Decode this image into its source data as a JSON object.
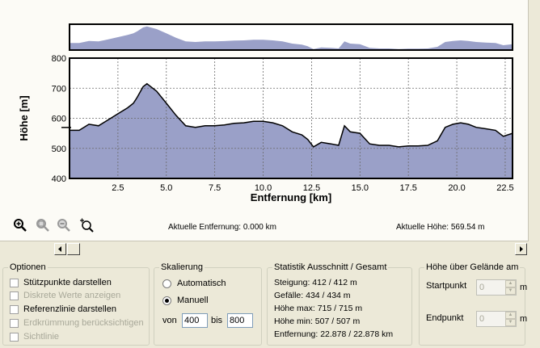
{
  "chart_data": {
    "type": "area",
    "title": "",
    "xlabel": "Entfernung [km]",
    "ylabel": "Höhe [m]",
    "xlim": [
      0,
      22.878
    ],
    "ylim": [
      400,
      800
    ],
    "xticks": [
      "2.5",
      "5.0",
      "7.5",
      "10.0",
      "12.5",
      "15.0",
      "17.5",
      "20.0",
      "22.5"
    ],
    "yticks": [
      "800",
      "700",
      "600",
      "500",
      "400"
    ],
    "grid": true,
    "reference_height": 569.54,
    "fill_color": "#9aa0c8",
    "line_color": "#000000",
    "series": [
      {
        "x": [
          0,
          0.5,
          1.0,
          1.5,
          2.0,
          2.5,
          3.0,
          3.3,
          3.5,
          3.8,
          4.0,
          4.5,
          5.0,
          5.5,
          6.0,
          6.5,
          7.0,
          7.5,
          8.0,
          8.5,
          9.0,
          9.5,
          10.0,
          10.5,
          11.0,
          11.5,
          12.0,
          12.3,
          12.6,
          13.0,
          13.5,
          13.9,
          14.2,
          14.5,
          15.0,
          15.5,
          16.0,
          16.5,
          17.0,
          17.5,
          18.0,
          18.5,
          19.0,
          19.4,
          19.8,
          20.2,
          20.6,
          21.0,
          21.5,
          22.0,
          22.4,
          22.878
        ],
        "y": [
          560,
          560,
          580,
          575,
          595,
          615,
          635,
          650,
          670,
          705,
          715,
          690,
          650,
          610,
          575,
          570,
          575,
          575,
          578,
          583,
          585,
          590,
          590,
          585,
          575,
          555,
          545,
          530,
          505,
          520,
          515,
          510,
          575,
          555,
          550,
          515,
          510,
          510,
          505,
          508,
          508,
          510,
          525,
          570,
          580,
          585,
          580,
          570,
          565,
          560,
          540,
          550
        ]
      }
    ]
  },
  "overview": {
    "x_max": 22.878
  },
  "tools": {
    "zoom_in": "zoom-in-icon",
    "zoom_area": "zoom-area-icon",
    "zoom_out": "zoom-out-icon",
    "zoom_fit": "zoom-fit-icon"
  },
  "status": {
    "distance": "Aktuelle Entfernung: 0.000 km",
    "height": "Aktuelle Höhe: 569.54 m"
  },
  "options": {
    "title": "Optionen",
    "items": [
      {
        "label": "Stützpunkte darstellen",
        "checked": false,
        "enabled": true
      },
      {
        "label": "Diskrete Werte anzeigen",
        "checked": false,
        "enabled": false
      },
      {
        "label": "Referenzlinie darstellen",
        "checked": false,
        "enabled": true
      },
      {
        "label": "Erdkrümmung berücksichtigen",
        "checked": false,
        "enabled": false
      },
      {
        "label": "Sichtlinie",
        "checked": false,
        "enabled": false
      }
    ]
  },
  "scaling": {
    "title": "Skalierung",
    "auto_label": "Automatisch",
    "manual_label": "Manuell",
    "selected": "Manuell",
    "from_label": "von",
    "from_value": "400",
    "to_label": "bis",
    "to_value": "800"
  },
  "statistics": {
    "title": "Statistik  Ausschnitt / Gesamt",
    "lines": [
      "Steigung: 412 / 412 m",
      "Gefälle: 434 / 434 m",
      "Höhe max: 715 / 715 m",
      "Höhe min: 507 / 507 m",
      "Entfernung: 22.878 / 22.878 km"
    ]
  },
  "terrain": {
    "title": "Höhe über Gelände am",
    "start_label": "Startpunkt",
    "start_value": "0",
    "end_label": "Endpunkt",
    "end_value": "0",
    "unit": "m"
  }
}
